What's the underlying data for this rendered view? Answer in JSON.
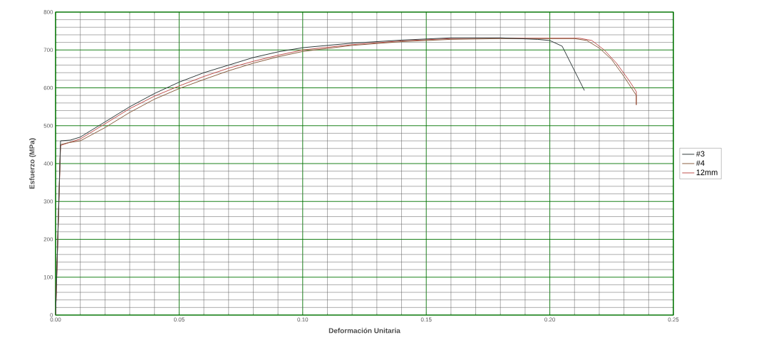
{
  "chart_data": {
    "type": "line",
    "xlabel": "Deformación Unitaria",
    "ylabel": "Esfuerzo (MPa)",
    "xlim": [
      0,
      0.25
    ],
    "ylim": [
      0,
      800
    ],
    "xticks": [
      {
        "value": 0,
        "label": "0.00"
      },
      {
        "value": 0.05,
        "label": "0.05"
      },
      {
        "value": 0.1,
        "label": "0.10"
      },
      {
        "value": 0.15,
        "label": "0.15"
      },
      {
        "value": 0.2,
        "label": "0.20"
      },
      {
        "value": 0.25,
        "label": "0.25"
      }
    ],
    "yticks": [
      0,
      100,
      200,
      300,
      400,
      500,
      600,
      700,
      800
    ],
    "grid": true,
    "legend": "right",
    "line_style": "solid",
    "marker": "none",
    "series": [
      {
        "name": "#3",
        "color": "#2f3a3a",
        "x": [
          0,
          0.002,
          0.006,
          0.01,
          0.02,
          0.03,
          0.04,
          0.05,
          0.06,
          0.07,
          0.08,
          0.09,
          0.1,
          0.12,
          0.14,
          0.16,
          0.18,
          0.195,
          0.2,
          0.205,
          0.214
        ],
        "values": [
          0,
          460,
          462,
          470,
          510,
          550,
          585,
          615,
          640,
          660,
          680,
          695,
          706,
          718,
          726,
          732,
          732,
          728,
          725,
          710,
          593
        ]
      },
      {
        "name": "#4",
        "color": "#8a5e40",
        "x": [
          0,
          0.002,
          0.005,
          0.01,
          0.02,
          0.03,
          0.04,
          0.05,
          0.06,
          0.07,
          0.08,
          0.09,
          0.1,
          0.12,
          0.14,
          0.16,
          0.18,
          0.2,
          0.21,
          0.215,
          0.22,
          0.225,
          0.23,
          0.233,
          0.235,
          0.235
        ],
        "values": [
          0,
          450,
          455,
          460,
          495,
          535,
          570,
          598,
          622,
          645,
          665,
          682,
          696,
          712,
          722,
          728,
          730,
          730,
          730,
          725,
          705,
          675,
          630,
          600,
          580,
          555
        ]
      },
      {
        "name": "12mm",
        "color": "#c0504d",
        "x": [
          0,
          0.002,
          0.01,
          0.02,
          0.03,
          0.04,
          0.05,
          0.06,
          0.07,
          0.08,
          0.09,
          0.1,
          0.12,
          0.14,
          0.16,
          0.18,
          0.2,
          0.212,
          0.217,
          0.222,
          0.227,
          0.232,
          0.235,
          0.235
        ],
        "values": [
          0,
          448,
          465,
          505,
          545,
          578,
          605,
          630,
          652,
          670,
          686,
          700,
          714,
          724,
          730,
          731,
          731,
          731,
          725,
          700,
          665,
          620,
          590,
          555
        ]
      }
    ]
  }
}
